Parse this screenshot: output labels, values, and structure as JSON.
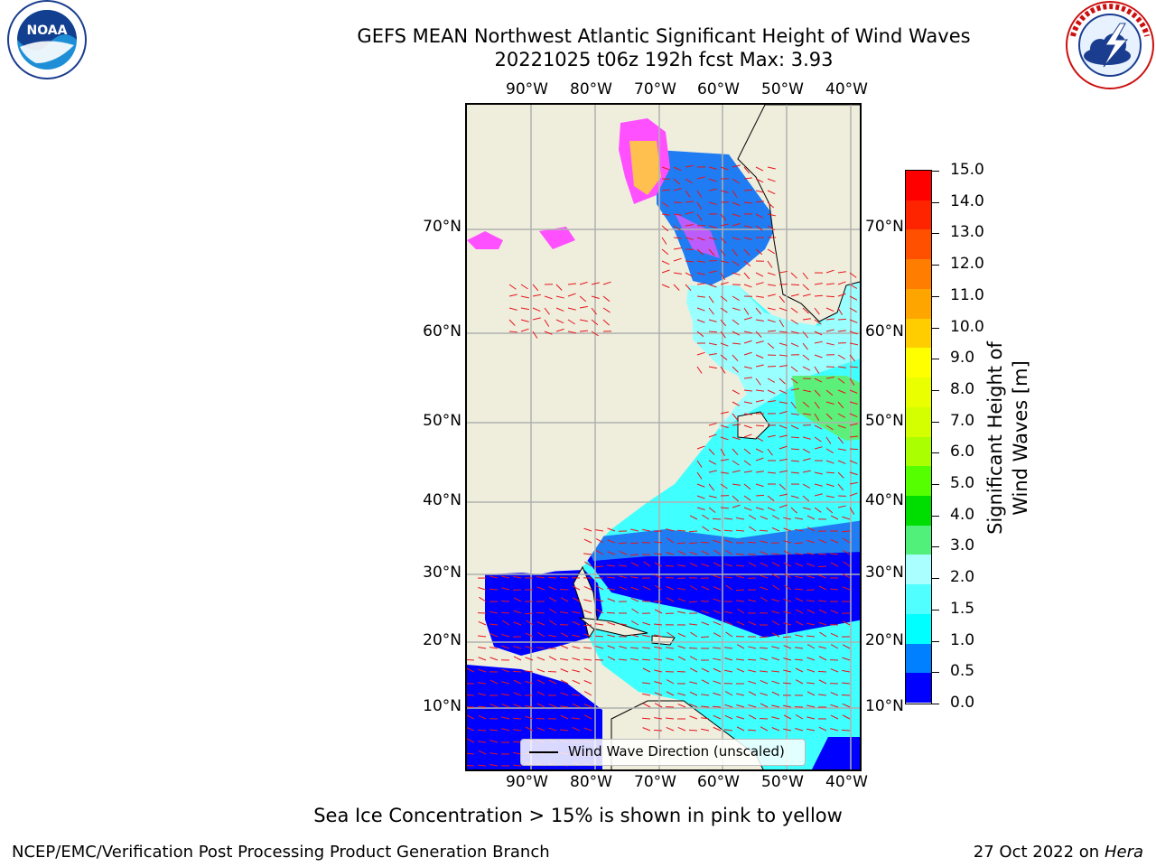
{
  "header": {
    "title_line1": "GEFS MEAN Northwest Atlantic Significant Height of Wind Waves",
    "title_line2": "20221025 t06z 192h fcst   Max: 3.93"
  },
  "logos": {
    "noaa_text": "NOAA",
    "noaa_ring_text": "NATIONAL OCEANIC AND ATMOSPHERIC ADMINISTRATION · U.S. DEPARTMENT OF COMMERCE",
    "nws_ring_text": "NATIONAL WEATHER SERVICE"
  },
  "map": {
    "lon_labels": [
      "90°W",
      "80°W",
      "70°W",
      "60°W",
      "50°W",
      "40°W"
    ],
    "lat_labels": [
      "70°N",
      "60°N",
      "50°N",
      "40°N",
      "30°N",
      "20°N",
      "10°N"
    ],
    "legend_label": "Wind Wave Direction (unscaled)",
    "land_color": "#efeedd",
    "arrow_color": "#e8141a"
  },
  "colorbar": {
    "title": "Significant Height of Wind Waves [m]",
    "tick_labels": [
      "15.0",
      "14.0",
      "13.0",
      "12.0",
      "11.0",
      "10.0",
      "9.0",
      "8.0",
      "7.0",
      "6.0",
      "5.0",
      "4.0",
      "3.0",
      "2.0",
      "1.5",
      "1.0",
      "0.5",
      "0.0"
    ],
    "colors_top_to_bottom": [
      "#ff0000",
      "#ff2400",
      "#ff5000",
      "#ff7d00",
      "#ffa500",
      "#ffcd00",
      "#ffff00",
      "#eaff00",
      "#d3ff00",
      "#aaff00",
      "#55ff00",
      "#00dd00",
      "#50f07a",
      "#aaffff",
      "#50ffff",
      "#00ffff",
      "#0080ff",
      "#0000ff"
    ]
  },
  "footnote": "Sea Ice Concentration > 15% is shown in pink to yellow",
  "credits": {
    "left": "NCEP/EMC/Verification Post Processing Product Generation Branch",
    "right_date": "27 Oct 2022 on",
    "right_machine": "Hera"
  }
}
